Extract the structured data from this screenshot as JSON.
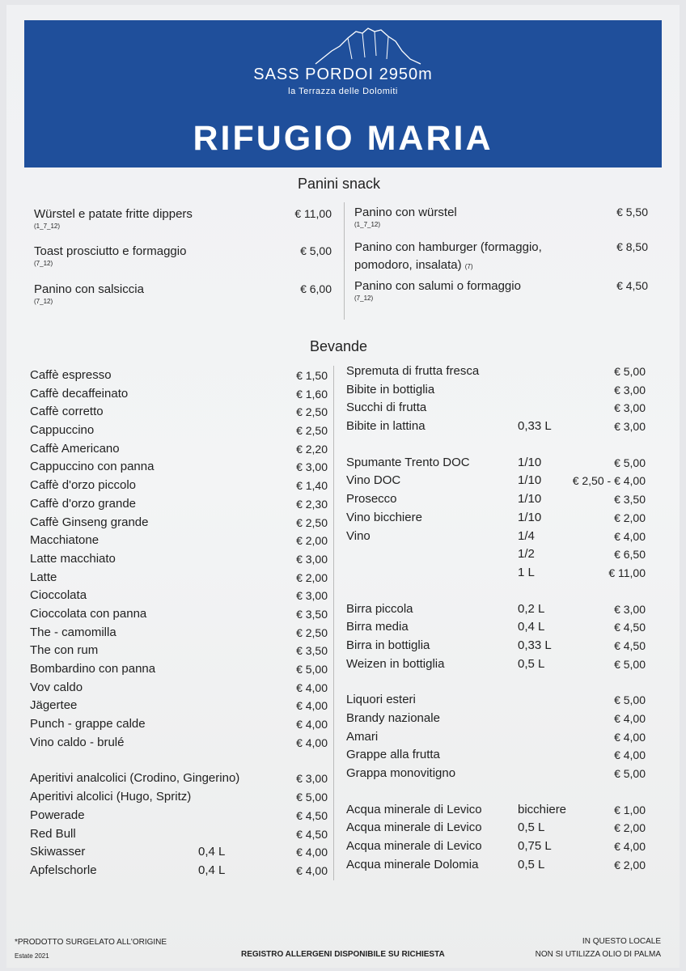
{
  "header": {
    "brand": "SASS PORDOI 2950m",
    "tagline": "la Terrazza delle Dolomiti",
    "title": "RIFUGIO MARIA",
    "color": "#1f4f9b",
    "logo_icon": "mountain-outline-icon"
  },
  "panini": {
    "title": "Panini snack",
    "left": [
      {
        "name": "Würstel e patate fritte dippers",
        "allergens": "(1_7_12)",
        "price": "€ 11,00"
      },
      {
        "name": "Toast prosciutto e formaggio",
        "allergens": "(7_12)",
        "price": "€ 5,00"
      },
      {
        "name": "Panino con salsiccia",
        "allergens": "(7_12)",
        "price": "€ 6,00"
      }
    ],
    "right": [
      {
        "name": "Panino con würstel",
        "allergens": "(1_7_12)",
        "price": "€ 5,50"
      },
      {
        "name": "Panino con hamburger (formaggio,",
        "name2": "pomodoro, insalata)",
        "allergens": "(7)",
        "price": "€ 8,50"
      },
      {
        "name": "Panino con salumi o formaggio",
        "allergens": "(7_12)",
        "price": "€ 4,50"
      }
    ]
  },
  "bevande": {
    "title": "Bevande",
    "left_groups": [
      [
        {
          "name": "Caffè espresso",
          "price": "€ 1,50"
        },
        {
          "name": "Caffè decaffeinato",
          "price": "€ 1,60"
        },
        {
          "name": "Caffè corretto",
          "price": "€ 2,50"
        },
        {
          "name": "Cappuccino",
          "price": "€ 2,50"
        },
        {
          "name": "Caffè Americano",
          "price": "€ 2,20"
        },
        {
          "name": "Cappuccino con panna",
          "price": "€ 3,00"
        },
        {
          "name": "Caffè d'orzo piccolo",
          "price": "€ 1,40"
        },
        {
          "name": "Caffè d'orzo grande",
          "price": "€ 2,30"
        },
        {
          "name": "Caffè Ginseng grande",
          "price": "€ 2,50"
        },
        {
          "name": "Macchiatone",
          "price": "€ 2,00"
        },
        {
          "name": "Latte macchiato",
          "price": "€ 3,00"
        },
        {
          "name": "Latte",
          "price": "€ 2,00"
        },
        {
          "name": "Cioccolata",
          "price": "€ 3,00"
        },
        {
          "name": "Cioccolata con panna",
          "price": "€ 3,50"
        },
        {
          "name": "The - camomilla",
          "price": "€ 2,50"
        },
        {
          "name": "The con rum",
          "price": "€ 3,50"
        },
        {
          "name": "Bombardino con panna",
          "price": "€ 5,00"
        },
        {
          "name": "Vov caldo",
          "price": "€ 4,00"
        },
        {
          "name": "Jägertee",
          "price": "€ 4,00"
        },
        {
          "name": "Punch - grappe calde",
          "price": "€ 4,00"
        },
        {
          "name": "Vino caldo - brulé",
          "price": "€ 4,00"
        }
      ],
      [
        {
          "name": "Aperitivi analcolici (Crodino, Gingerino)",
          "price": "€ 3,00"
        },
        {
          "name": "Aperitivi alcolici (Hugo, Spritz)",
          "price": "€ 5,00"
        },
        {
          "name": "Powerade",
          "price": "€ 4,50"
        },
        {
          "name": "Red Bull",
          "price": "€ 4,50"
        },
        {
          "name": "Skiwasser",
          "volume": "0,4 L",
          "price": "€ 4,00"
        },
        {
          "name": "Apfelschorle",
          "volume": "0,4 L",
          "price": "€ 4,00"
        }
      ]
    ],
    "right_groups": [
      [
        {
          "name": "Spremuta di frutta fresca",
          "price": "€ 5,00"
        },
        {
          "name": "Bibite in bottiglia",
          "price": "€ 3,00"
        },
        {
          "name": "Succhi di frutta",
          "price": "€ 3,00"
        },
        {
          "name": "Bibite in lattina",
          "volume": "0,33 L",
          "price": "€ 3,00"
        }
      ],
      [
        {
          "name": "Spumante Trento DOC",
          "volume": "1/10",
          "price": "€ 5,00"
        },
        {
          "name": "Vino DOC",
          "volume": "1/10",
          "price": "€ 2,50 - € 4,00"
        },
        {
          "name": "Prosecco",
          "volume": "1/10",
          "price": "€ 3,50"
        },
        {
          "name": "Vino bicchiere",
          "volume": "1/10",
          "price": "€ 2,00"
        },
        {
          "name": "Vino",
          "volume": "1/4",
          "price": "€ 4,00"
        },
        {
          "name": "",
          "volume": "1/2",
          "price": "€ 6,50"
        },
        {
          "name": "",
          "volume": "1 L",
          "price": "€ 11,00"
        }
      ],
      [
        {
          "name": "Birra piccola",
          "volume": "0,2 L",
          "price": "€ 3,00"
        },
        {
          "name": "Birra media",
          "volume": "0,4 L",
          "price": "€ 4,50"
        },
        {
          "name": "Birra in bottiglia",
          "volume": "0,33 L",
          "price": "€ 4,50"
        },
        {
          "name": "Weizen in bottiglia",
          "volume": "0,5 L",
          "price": "€ 5,00"
        }
      ],
      [
        {
          "name": "Liquori esteri",
          "price": "€ 5,00"
        },
        {
          "name": "Brandy nazionale",
          "price": "€ 4,00"
        },
        {
          "name": "Amari",
          "price": "€ 4,00"
        },
        {
          "name": "Grappe alla frutta",
          "price": "€ 4,00"
        },
        {
          "name": "Grappa monovitigno",
          "price": "€ 5,00"
        }
      ],
      [
        {
          "name": "Acqua minerale di Levico",
          "volume": "bicchiere",
          "price": "€ 1,00"
        },
        {
          "name": "Acqua minerale di Levico",
          "volume": "0,5 L",
          "price": "€ 2,00"
        },
        {
          "name": "Acqua minerale di Levico",
          "volume": "0,75 L",
          "price": "€ 4,00"
        },
        {
          "name": "Acqua minerale Dolomia",
          "volume": "0,5 L",
          "price": "€ 2,00"
        }
      ]
    ]
  },
  "footer": {
    "frozen_note": "*PRODOTTO SURGELATO ALL'ORIGINE",
    "season": "Estate 2021",
    "allergens_note": "REGISTRO ALLERGENI DISPONIBILE SU RICHIESTA",
    "palm_line1": "IN QUESTO LOCALE",
    "palm_line2": "NON SI UTILIZZA OLIO DI PALMA"
  }
}
